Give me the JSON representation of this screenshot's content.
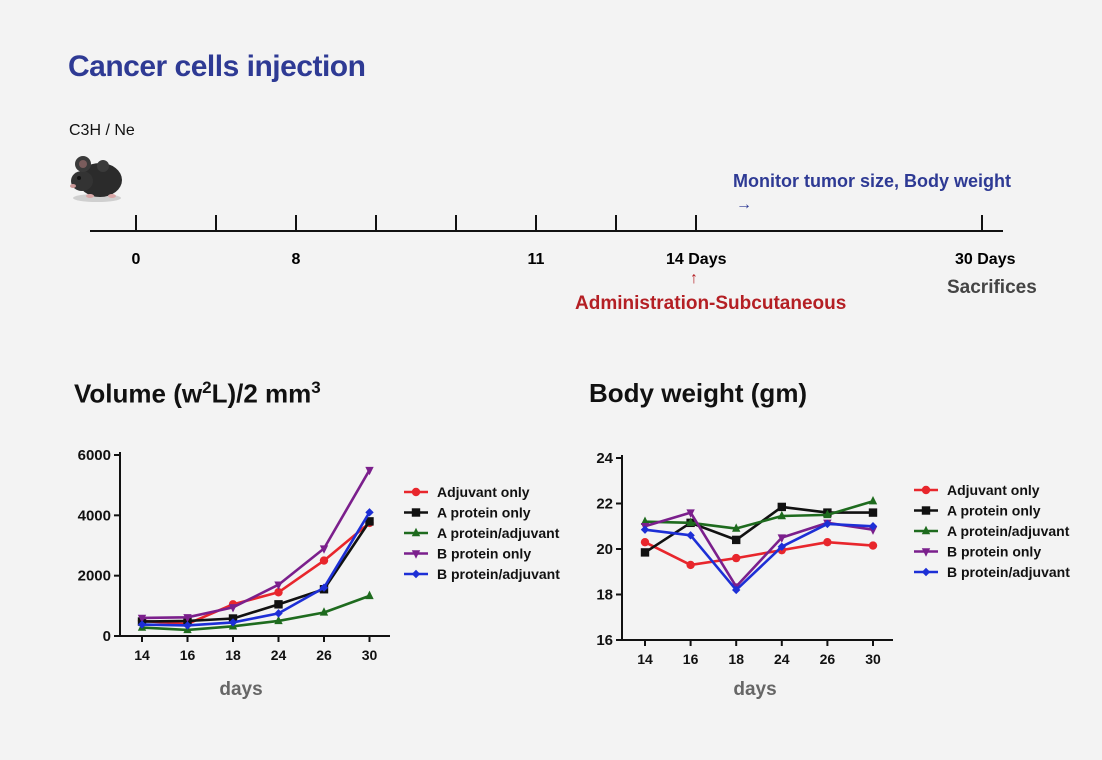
{
  "header": {
    "title": "Cancer cells injection",
    "strain": "C3H / Ne"
  },
  "timeline": {
    "ticks": [
      "0",
      "8",
      "11",
      "14 Days",
      "30 Days"
    ],
    "monitor_label": "Monitor tumor size, Body weight",
    "monitor_arrow": "→",
    "admin_arrow": "↑",
    "admin_label": "Administration-Subcutaneous",
    "end_label": "Sacrifices"
  },
  "colors": {
    "title_blue": "#2e3a94",
    "admin_red": "#b41f24",
    "adjuvant_only": "#e8262c",
    "a_protein_only": "#111111",
    "a_protein_adjuvant": "#1e6b1e",
    "b_protein_only": "#7b1f8c",
    "b_protein_adjuvant": "#1d2fd6"
  },
  "chart_titles": {
    "volume": {
      "main": "Volume (w",
      "sup1": "2",
      "mid": "L)/2 mm",
      "sup2": "3"
    },
    "body_weight": "Body weight (gm)"
  },
  "chart_data": [
    {
      "type": "line",
      "categories": [
        "14",
        "16",
        "18",
        "24",
        "26",
        "30"
      ],
      "xlabel": "days",
      "ylim": [
        0,
        6000
      ],
      "yticks": [
        "0",
        "2000",
        "4000",
        "6000"
      ],
      "legend_position": "right",
      "series": [
        {
          "name": "Adjuvant only",
          "marker": "circle",
          "color": "#e8262c",
          "values": [
            500,
            400,
            1050,
            1450,
            2500,
            3750
          ]
        },
        {
          "name": "A protein only",
          "marker": "square",
          "color": "#111111",
          "values": [
            480,
            500,
            580,
            1050,
            1550,
            3800
          ]
        },
        {
          "name": "A protein/adjuvant",
          "marker": "triangle-up",
          "color": "#1e6b1e",
          "values": [
            280,
            200,
            320,
            500,
            780,
            1330
          ]
        },
        {
          "name": "B protein only",
          "marker": "triangle-down",
          "color": "#7b1f8c",
          "values": [
            600,
            620,
            950,
            1700,
            2900,
            5500
          ]
        },
        {
          "name": "B protein/adjuvant",
          "marker": "diamond",
          "color": "#1d2fd6",
          "values": [
            380,
            350,
            450,
            750,
            1600,
            4100
          ]
        }
      ]
    },
    {
      "type": "line",
      "categories": [
        "14",
        "16",
        "18",
        "24",
        "26",
        "30"
      ],
      "xlabel": "days",
      "ylim": [
        16,
        24
      ],
      "yticks": [
        "16",
        "18",
        "20",
        "22",
        "24"
      ],
      "legend_position": "right",
      "series": [
        {
          "name": "Adjuvant only",
          "marker": "circle",
          "color": "#e8262c",
          "values": [
            20.3,
            19.3,
            19.6,
            19.95,
            20.3,
            20.15
          ]
        },
        {
          "name": "A protein only",
          "marker": "square",
          "color": "#111111",
          "values": [
            19.85,
            21.15,
            20.4,
            21.85,
            21.6,
            21.6
          ]
        },
        {
          "name": "A protein/adjuvant",
          "marker": "triangle-up",
          "color": "#1e6b1e",
          "values": [
            21.2,
            21.15,
            20.9,
            21.45,
            21.5,
            22.1
          ]
        },
        {
          "name": "B protein only",
          "marker": "triangle-down",
          "color": "#7b1f8c",
          "values": [
            21.0,
            21.6,
            18.35,
            20.5,
            21.15,
            20.85
          ]
        },
        {
          "name": "B protein/adjuvant",
          "marker": "diamond",
          "color": "#1d2fd6",
          "values": [
            20.85,
            20.6,
            18.2,
            20.1,
            21.1,
            21.0
          ]
        }
      ]
    }
  ]
}
